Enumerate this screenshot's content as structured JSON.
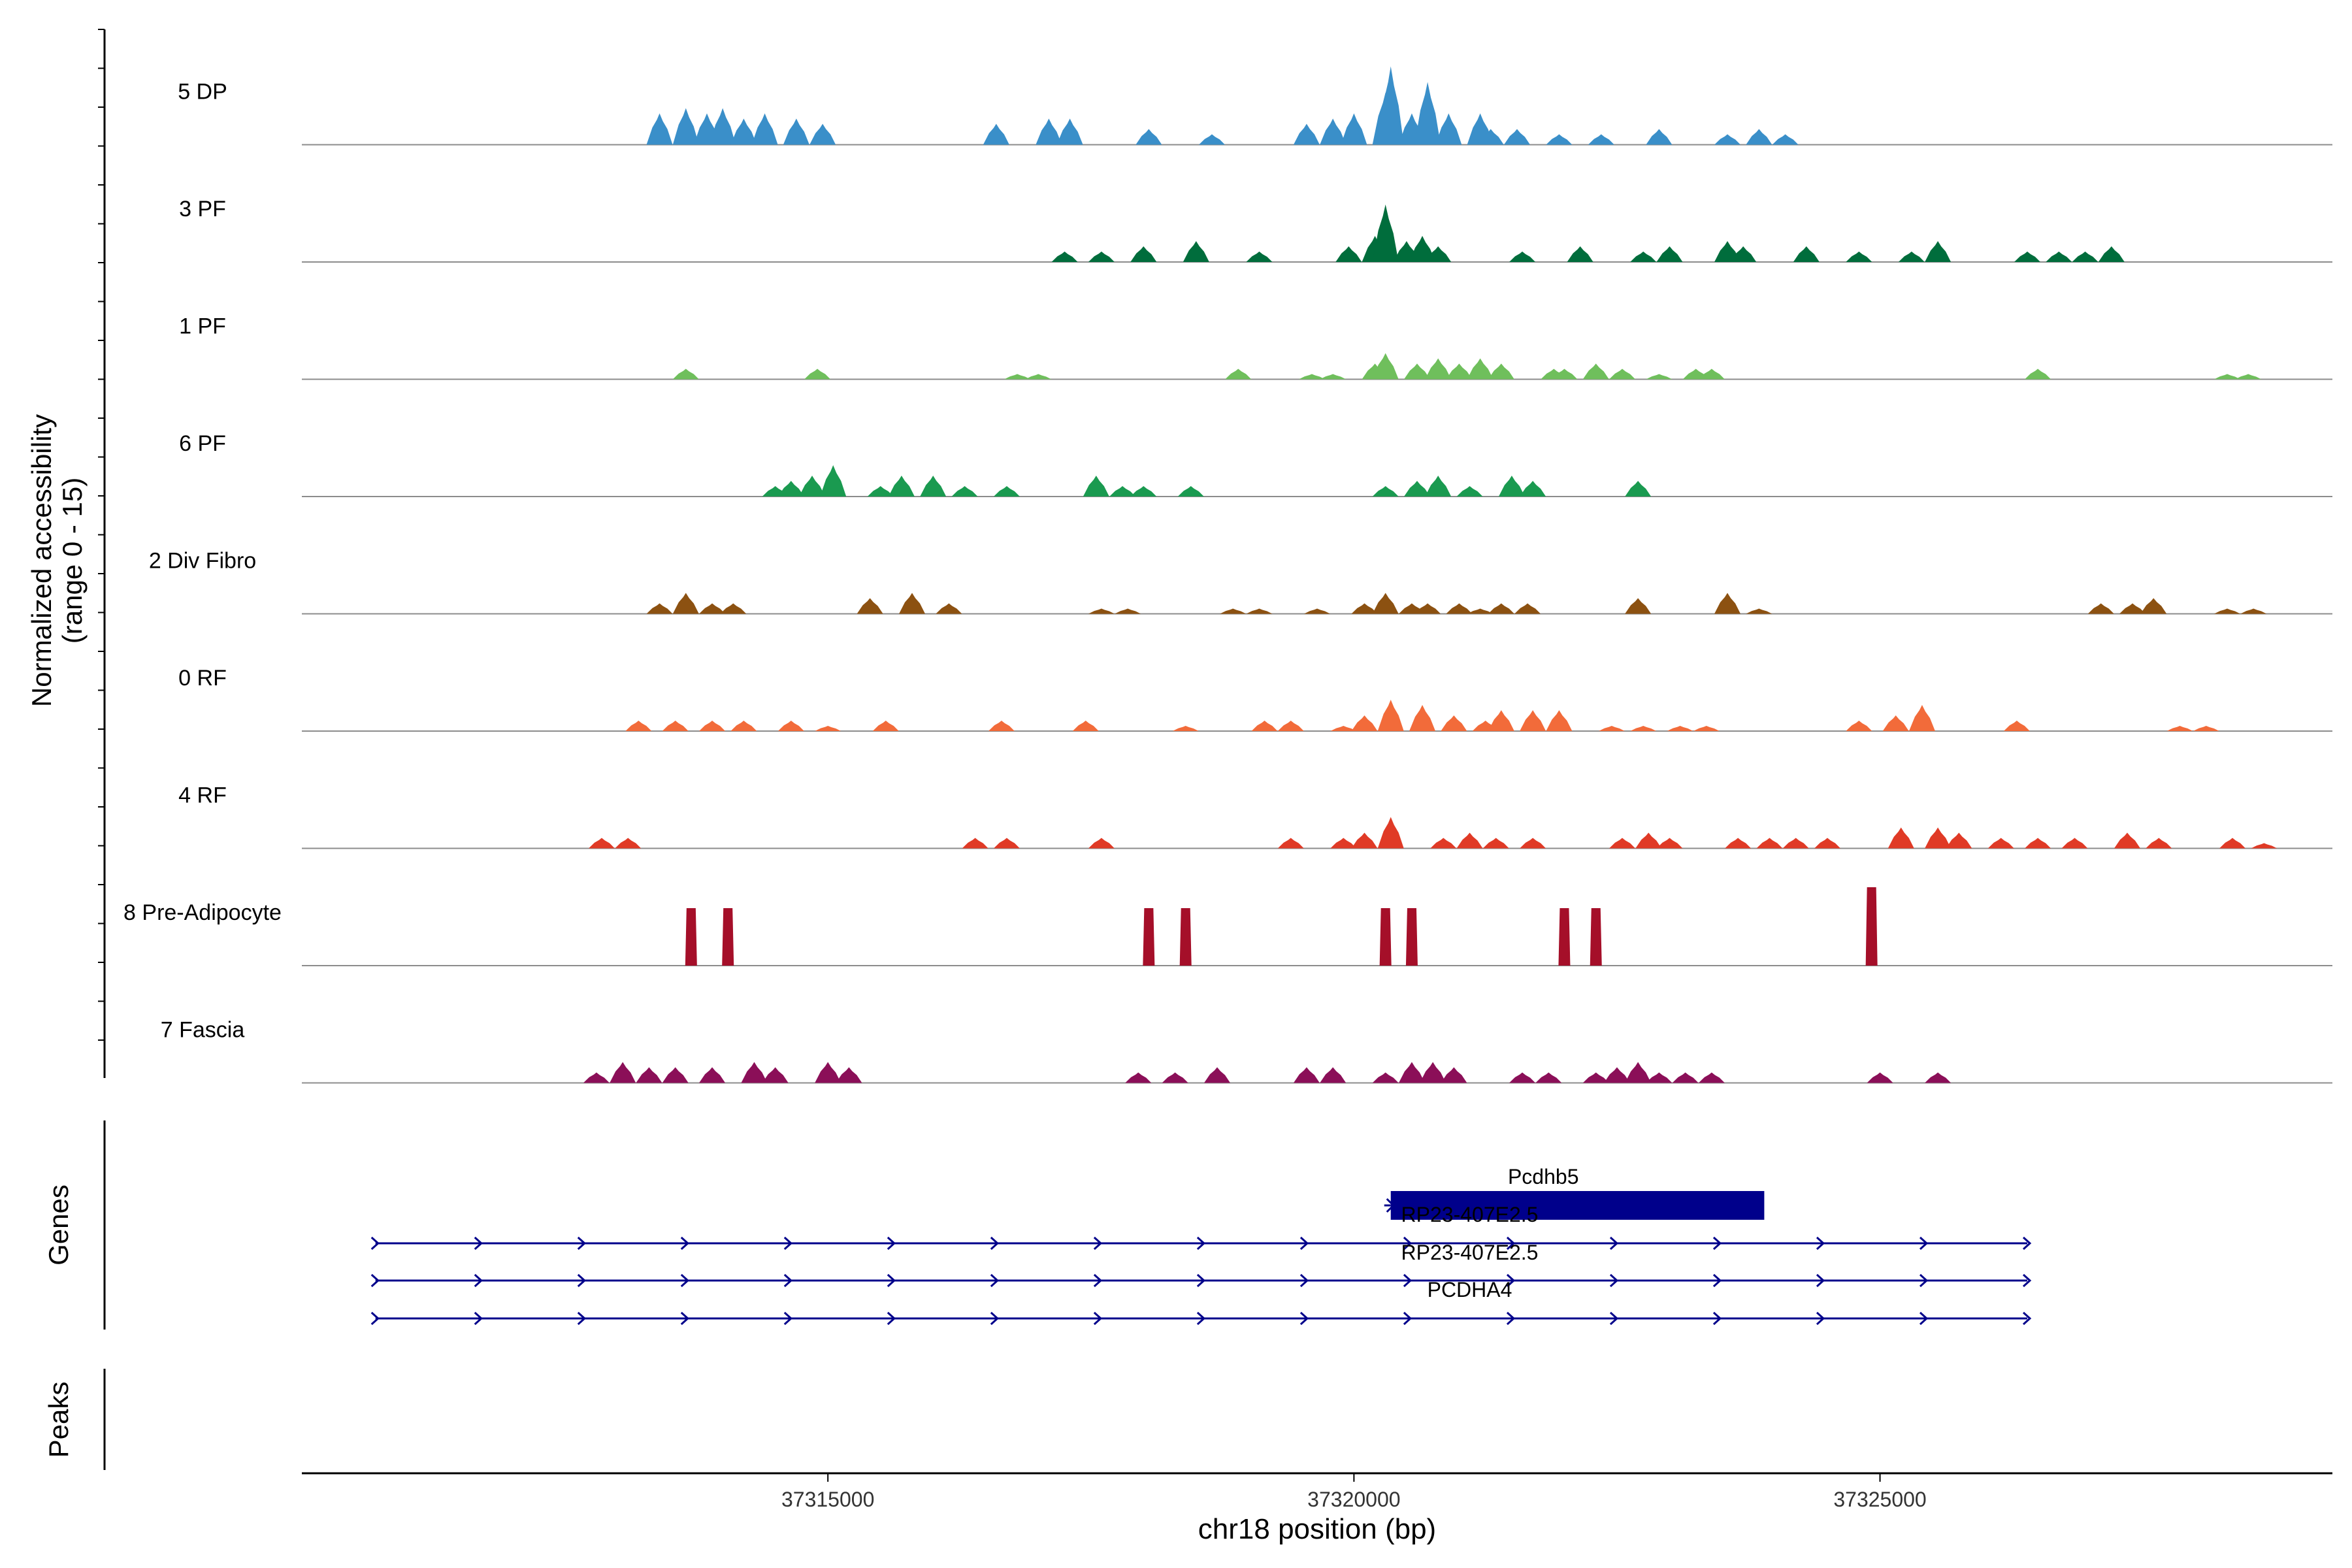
{
  "chart_data": {
    "type": "area",
    "title": "",
    "xlabel": "chr18 position (bp)",
    "ylabel_line1": "Normalized accessibility",
    "ylabel_line2": "(range 0 - 15)",
    "xlim": [
      37310000,
      37329300
    ],
    "ylim": [
      0,
      15
    ],
    "x_ticks": [
      37315000,
      37320000,
      37325000
    ],
    "x_tick_labels": [
      "37315000",
      "37320000",
      "37325000"
    ],
    "panel_labels": {
      "genes": "Genes",
      "peaks": "Peaks"
    },
    "tracks": [
      {
        "name": "5 DP",
        "color": "#3a8fc9",
        "peaks": [
          [
            37313400,
            6
          ],
          [
            37313650,
            7
          ],
          [
            37313850,
            6
          ],
          [
            37314000,
            7
          ],
          [
            37314200,
            5
          ],
          [
            37314400,
            6
          ],
          [
            37314700,
            5
          ],
          [
            37314950,
            4
          ],
          [
            37316600,
            4
          ],
          [
            37317100,
            5
          ],
          [
            37317300,
            5
          ],
          [
            37318050,
            3
          ],
          [
            37318650,
            2
          ],
          [
            37319550,
            4
          ],
          [
            37319800,
            5
          ],
          [
            37320000,
            6
          ],
          [
            37320300,
            10
          ],
          [
            37320350,
            15
          ],
          [
            37320550,
            6
          ],
          [
            37320700,
            12
          ],
          [
            37320900,
            6
          ],
          [
            37321200,
            6
          ],
          [
            37321300,
            3
          ],
          [
            37321550,
            3
          ],
          [
            37321950,
            2
          ],
          [
            37322350,
            2
          ],
          [
            37322900,
            3
          ],
          [
            37323550,
            2
          ],
          [
            37323850,
            3
          ],
          [
            37324100,
            2
          ]
        ]
      },
      {
        "name": "3 PF",
        "color": "#006d3c",
        "peaks": [
          [
            37317250,
            2
          ],
          [
            37317600,
            2
          ],
          [
            37318000,
            3
          ],
          [
            37318500,
            4
          ],
          [
            37319100,
            2
          ],
          [
            37319950,
            3
          ],
          [
            37320200,
            5
          ],
          [
            37320300,
            11
          ],
          [
            37320500,
            4
          ],
          [
            37320650,
            5
          ],
          [
            37320800,
            3
          ],
          [
            37321600,
            2
          ],
          [
            37322150,
            3
          ],
          [
            37322750,
            2
          ],
          [
            37323000,
            3
          ],
          [
            37323550,
            4
          ],
          [
            37323700,
            3
          ],
          [
            37324300,
            3
          ],
          [
            37324800,
            2
          ],
          [
            37325300,
            2
          ],
          [
            37325550,
            4
          ],
          [
            37326400,
            2
          ],
          [
            37326700,
            2
          ],
          [
            37326950,
            2
          ],
          [
            37327200,
            3
          ]
        ]
      },
      {
        "name": "1 PF",
        "color": "#6fbf5c",
        "peaks": [
          [
            37313650,
            2
          ],
          [
            37314900,
            2
          ],
          [
            37316800,
            1
          ],
          [
            37317000,
            1
          ],
          [
            37318900,
            2
          ],
          [
            37319600,
            1
          ],
          [
            37319800,
            1
          ],
          [
            37320200,
            3
          ],
          [
            37320300,
            5
          ],
          [
            37320600,
            3
          ],
          [
            37320800,
            4
          ],
          [
            37321000,
            3
          ],
          [
            37321200,
            4
          ],
          [
            37321400,
            3
          ],
          [
            37321900,
            2
          ],
          [
            37322000,
            2
          ],
          [
            37322300,
            3
          ],
          [
            37322550,
            2
          ],
          [
            37322900,
            1
          ],
          [
            37323250,
            2
          ],
          [
            37323400,
            2
          ],
          [
            37326500,
            2
          ],
          [
            37328300,
            1
          ],
          [
            37328500,
            1
          ]
        ]
      },
      {
        "name": "6 PF",
        "color": "#1a9a50",
        "peaks": [
          [
            37314500,
            2
          ],
          [
            37314650,
            3
          ],
          [
            37314850,
            4
          ],
          [
            37315050,
            6
          ],
          [
            37315500,
            2
          ],
          [
            37315700,
            4
          ],
          [
            37316000,
            4
          ],
          [
            37316300,
            2
          ],
          [
            37316700,
            2
          ],
          [
            37317550,
            4
          ],
          [
            37317800,
            2
          ],
          [
            37318000,
            2
          ],
          [
            37318450,
            2
          ],
          [
            37320300,
            2
          ],
          [
            37320600,
            3
          ],
          [
            37320800,
            4
          ],
          [
            37321100,
            2
          ],
          [
            37321500,
            4
          ],
          [
            37321700,
            3
          ],
          [
            37322700,
            3
          ]
        ]
      },
      {
        "name": "2 Div Fibro",
        "color": "#8c5111",
        "peaks": [
          [
            37313400,
            2
          ],
          [
            37313650,
            4
          ],
          [
            37313900,
            2
          ],
          [
            37314100,
            2
          ],
          [
            37315400,
            3
          ],
          [
            37315800,
            4
          ],
          [
            37316150,
            2
          ],
          [
            37317600,
            1
          ],
          [
            37317850,
            1
          ],
          [
            37318850,
            1
          ],
          [
            37319100,
            1
          ],
          [
            37319650,
            1
          ],
          [
            37320100,
            2
          ],
          [
            37320300,
            4
          ],
          [
            37320550,
            2
          ],
          [
            37320700,
            2
          ],
          [
            37321000,
            2
          ],
          [
            37321200,
            1
          ],
          [
            37321400,
            2
          ],
          [
            37321650,
            2
          ],
          [
            37322700,
            3
          ],
          [
            37323550,
            4
          ],
          [
            37323850,
            1
          ],
          [
            37327100,
            2
          ],
          [
            37327400,
            2
          ],
          [
            37327600,
            3
          ],
          [
            37328300,
            1
          ],
          [
            37328550,
            1
          ]
        ]
      },
      {
        "name": "0 RF",
        "color": "#f26b3a",
        "peaks": [
          [
            37313200,
            2
          ],
          [
            37313550,
            2
          ],
          [
            37313900,
            2
          ],
          [
            37314200,
            2
          ],
          [
            37314650,
            2
          ],
          [
            37315000,
            1
          ],
          [
            37315550,
            2
          ],
          [
            37316650,
            2
          ],
          [
            37317450,
            2
          ],
          [
            37318400,
            1
          ],
          [
            37319150,
            2
          ],
          [
            37319400,
            2
          ],
          [
            37319900,
            1
          ],
          [
            37320100,
            3
          ],
          [
            37320350,
            6
          ],
          [
            37320650,
            5
          ],
          [
            37320950,
            3
          ],
          [
            37321250,
            2
          ],
          [
            37321400,
            4
          ],
          [
            37321700,
            4
          ],
          [
            37321950,
            4
          ],
          [
            37322450,
            1
          ],
          [
            37322750,
            1
          ],
          [
            37323100,
            1
          ],
          [
            37323350,
            1
          ],
          [
            37324800,
            2
          ],
          [
            37325150,
            3
          ],
          [
            37325400,
            5
          ],
          [
            37326300,
            2
          ],
          [
            37327850,
            1
          ],
          [
            37328100,
            1
          ]
        ]
      },
      {
        "name": "4 RF",
        "color": "#e03a26",
        "peaks": [
          [
            37312850,
            2
          ],
          [
            37313100,
            2
          ],
          [
            37316400,
            2
          ],
          [
            37316700,
            2
          ],
          [
            37317600,
            2
          ],
          [
            37319400,
            2
          ],
          [
            37319900,
            2
          ],
          [
            37320100,
            3
          ],
          [
            37320350,
            6
          ],
          [
            37320850,
            2
          ],
          [
            37321100,
            3
          ],
          [
            37321350,
            2
          ],
          [
            37321700,
            2
          ],
          [
            37322550,
            2
          ],
          [
            37322800,
            3
          ],
          [
            37323000,
            2
          ],
          [
            37323650,
            2
          ],
          [
            37323950,
            2
          ],
          [
            37324200,
            2
          ],
          [
            37324500,
            2
          ],
          [
            37325200,
            4
          ],
          [
            37325550,
            4
          ],
          [
            37325750,
            3
          ],
          [
            37326150,
            2
          ],
          [
            37326500,
            2
          ],
          [
            37326850,
            2
          ],
          [
            37327350,
            3
          ],
          [
            37327650,
            2
          ],
          [
            37328350,
            2
          ],
          [
            37328650,
            1
          ]
        ]
      },
      {
        "name": "8 Pre-Adipocyte",
        "color": "#a50f29",
        "peaks": [
          [
            37313700,
            11
          ],
          [
            37314050,
            11
          ],
          [
            37318050,
            11
          ],
          [
            37318400,
            11
          ],
          [
            37320300,
            11
          ],
          [
            37320550,
            11
          ],
          [
            37322000,
            11
          ],
          [
            37322300,
            11
          ],
          [
            37324920,
            15
          ]
        ]
      },
      {
        "name": "7 Fascia",
        "color": "#8b0f58",
        "peaks": [
          [
            37312800,
            2
          ],
          [
            37313050,
            4
          ],
          [
            37313300,
            3
          ],
          [
            37313550,
            3
          ],
          [
            37313900,
            3
          ],
          [
            37314300,
            4
          ],
          [
            37314500,
            3
          ],
          [
            37315000,
            4
          ],
          [
            37315200,
            3
          ],
          [
            37317950,
            2
          ],
          [
            37318300,
            2
          ],
          [
            37318700,
            3
          ],
          [
            37319550,
            3
          ],
          [
            37319800,
            3
          ],
          [
            37320300,
            2
          ],
          [
            37320550,
            4
          ],
          [
            37320750,
            4
          ],
          [
            37320950,
            3
          ],
          [
            37321600,
            2
          ],
          [
            37321850,
            2
          ],
          [
            37322300,
            2
          ],
          [
            37322500,
            3
          ],
          [
            37322700,
            4
          ],
          [
            37322900,
            2
          ],
          [
            37323150,
            2
          ],
          [
            37323400,
            2
          ],
          [
            37325000,
            2
          ],
          [
            37325550,
            2
          ]
        ]
      }
    ],
    "genes": [
      {
        "name": "Pcdhb5",
        "start": 37320350,
        "end": 37323900,
        "label_x": 37321800,
        "row": 0,
        "kind": "exon"
      },
      {
        "name": "RP23-407E2.5",
        "start": 37310700,
        "end": 37326400,
        "label_x": 37321100,
        "row": 1,
        "kind": "intron"
      },
      {
        "name": "RP23-407E2.5",
        "start": 37310700,
        "end": 37326400,
        "label_x": 37321100,
        "row": 2,
        "kind": "intron"
      },
      {
        "name": "PCDHA4",
        "start": 37310700,
        "end": 37326400,
        "label_x": 37321100,
        "row": 3,
        "kind": "intron"
      }
    ],
    "gene_color": "#00008b",
    "baseline_color": "#8c8c8c"
  }
}
